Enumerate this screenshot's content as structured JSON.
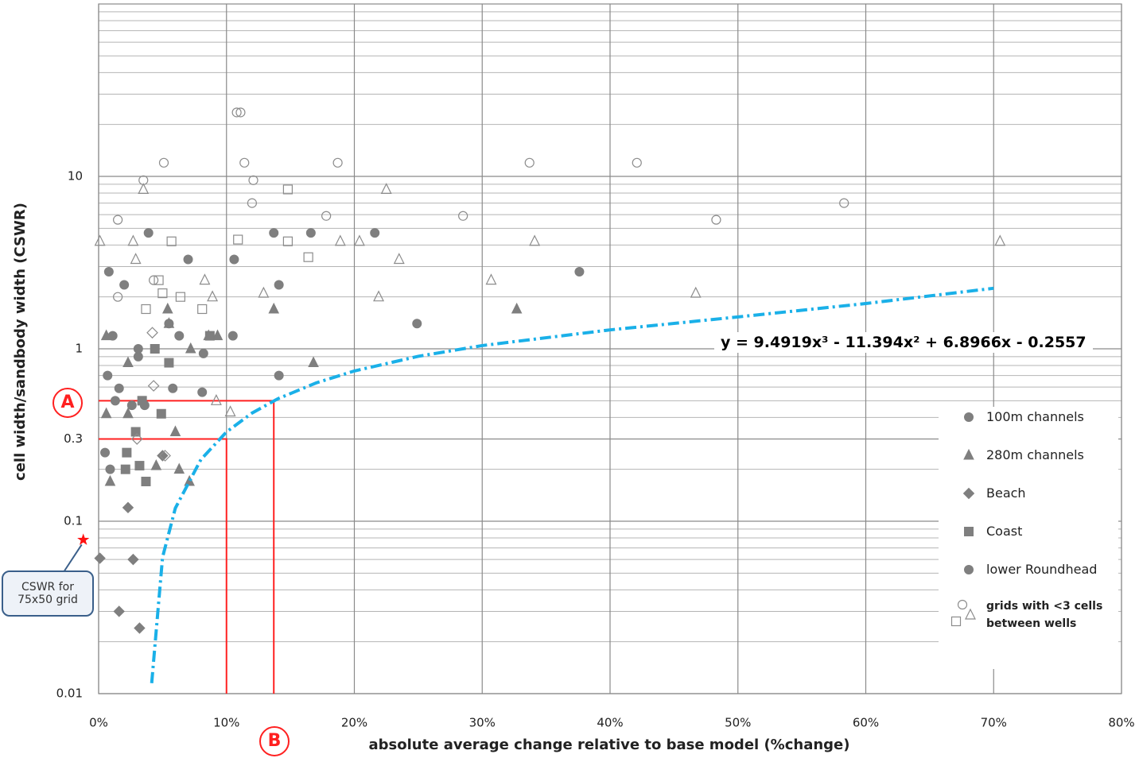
{
  "chart_data": {
    "type": "scatter",
    "x_label": "absolute average change relative to base model (%change)",
    "y_label": "cell width/sandbody width (CSWR)",
    "xlim": [
      0,
      0.8
    ],
    "xticks": [
      {
        "value": 0,
        "label": "0%"
      },
      {
        "value": 0.1,
        "label": "10%"
      },
      {
        "value": 0.2,
        "label": "20%"
      },
      {
        "value": 0.3,
        "label": "30%"
      },
      {
        "value": 0.4,
        "label": "40%"
      },
      {
        "value": 0.5,
        "label": "50%"
      },
      {
        "value": 0.6,
        "label": "60%"
      },
      {
        "value": 0.7,
        "label": "70%"
      },
      {
        "value": 0.8,
        "label": "80%"
      }
    ],
    "ylim": [
      0.01,
      100
    ],
    "log_y": true,
    "yticks": [
      0.01,
      0.1,
      0.3,
      1,
      10
    ],
    "yminor": [
      0.02,
      0.03,
      0.04,
      0.05,
      0.06,
      0.07,
      0.08,
      0.09,
      0.2,
      0.3,
      0.4,
      0.5,
      0.6,
      0.7,
      0.8,
      0.9,
      2,
      3,
      4,
      5,
      6,
      7,
      8,
      9,
      20,
      30,
      40,
      50,
      60,
      70,
      80,
      90
    ],
    "grid": true,
    "series": [
      {
        "name": "100m channels",
        "marker": "circle",
        "filled": true,
        "color": "#7f7f7f",
        "x": [
          0.039,
          0.008,
          0.02,
          0.07,
          0.055,
          0.011,
          0.031,
          0.007,
          0.016,
          0.058,
          0.026,
          0.036,
          0.081,
          0.063,
          0.105,
          0.137,
          0.166,
          0.216,
          0.141,
          0.141,
          0.249,
          0.376,
          0.005,
          0.009
        ],
        "values": [
          4.7,
          2.8,
          2.35,
          3.3,
          1.4,
          1.19,
          1.0,
          0.7,
          0.59,
          0.59,
          0.47,
          0.47,
          0.56,
          1.19,
          1.19,
          4.7,
          4.7,
          4.7,
          2.35,
          0.7,
          1.4,
          2.8,
          0.25,
          0.2
        ]
      },
      {
        "name": "280m channels",
        "marker": "triangle",
        "filled": true,
        "color": "#7f7f7f",
        "x": [
          0.054,
          0.023,
          0.072,
          0.086,
          0.093,
          0.006,
          0.023,
          0.06,
          0.009,
          0.063,
          0.071,
          0.137,
          0.168,
          0.327,
          0.045,
          0.006,
          0.055
        ],
        "values": [
          1.7,
          0.83,
          1.0,
          1.19,
          1.19,
          0.42,
          0.42,
          0.33,
          0.17,
          0.2,
          0.17,
          1.7,
          0.83,
          1.7,
          0.21,
          1.19,
          1.4
        ]
      },
      {
        "name": "Beach",
        "marker": "diamond",
        "filled": true,
        "color": "#7f7f7f",
        "x": [
          0.001,
          0.027,
          0.016,
          0.032,
          0.023,
          0.05
        ],
        "values": [
          0.061,
          0.06,
          0.03,
          0.024,
          0.12,
          0.24
        ]
      },
      {
        "name": "Coast",
        "marker": "square",
        "filled": true,
        "color": "#7f7f7f",
        "x": [
          0.044,
          0.055,
          0.049,
          0.029,
          0.032,
          0.021,
          0.037,
          0.087,
          0.034,
          0.022
        ],
        "values": [
          1.0,
          0.83,
          0.42,
          0.33,
          0.21,
          0.2,
          0.17,
          1.19,
          0.5,
          0.25
        ]
      },
      {
        "name": "lower Roundhead",
        "marker": "circle",
        "filled": true,
        "color": "#7f7f7f",
        "x": [
          0.106,
          0.082,
          0.031,
          0.013
        ],
        "values": [
          3.3,
          0.94,
          0.9,
          0.5
        ]
      },
      {
        "name": "grids with <3 cells between wells",
        "marker": "circle",
        "filled": false,
        "color": "#8c8c8c",
        "legend_markers": [
          "circle",
          "triangle",
          "square"
        ],
        "x": [
          0.108,
          0.111,
          0.051,
          0.035,
          0.015,
          0.114,
          0.121,
          0.12,
          0.187,
          0.178,
          0.285,
          0.337,
          0.421,
          0.483,
          0.583,
          0.015,
          0.043
        ],
        "values": [
          23.5,
          23.5,
          12,
          9.5,
          5.6,
          12,
          9.5,
          7,
          12,
          5.9,
          5.9,
          12,
          12,
          5.6,
          7,
          2.0,
          2.5
        ]
      },
      {
        "marker": "triangle",
        "filled": false,
        "color": "#8c8c8c",
        "x": [
          0.001,
          0.035,
          0.027,
          0.029,
          0.083,
          0.089,
          0.129,
          0.189,
          0.204,
          0.225,
          0.235,
          0.219,
          0.307,
          0.341,
          0.467,
          0.705,
          0.092,
          0.103
        ],
        "values": [
          4.2,
          8.4,
          4.2,
          3.3,
          2.5,
          2.0,
          2.1,
          4.2,
          4.2,
          8.4,
          3.3,
          2.0,
          2.5,
          4.2,
          2.1,
          4.2,
          0.5,
          0.43
        ]
      },
      {
        "marker": "square",
        "filled": false,
        "color": "#8c8c8c",
        "x": [
          0.057,
          0.047,
          0.05,
          0.064,
          0.037,
          0.081,
          0.109,
          0.148,
          0.148,
          0.164
        ],
        "values": [
          4.2,
          2.5,
          2.1,
          2.0,
          1.7,
          1.7,
          4.3,
          8.4,
          4.2,
          3.4
        ]
      },
      {
        "marker": "diamond",
        "filled": false,
        "color": "#8c8c8c",
        "x": [
          0.042,
          0.043,
          0.03,
          0.052
        ],
        "values": [
          1.24,
          0.61,
          0.3,
          0.24
        ]
      }
    ],
    "trendline": {
      "label": "y = 9.4919x³ - 11.394x² + 6.8966x - 0.2557",
      "color": "#1ab0e8",
      "x": [
        0.0415,
        0.05,
        0.06,
        0.08,
        0.1,
        0.12,
        0.14,
        0.17,
        0.2,
        0.25,
        0.3,
        0.4,
        0.5,
        0.6,
        0.7
      ],
      "values": [
        0.0115,
        0.0618,
        0.1191,
        0.228,
        0.3295,
        0.4242,
        0.5125,
        0.6338,
        0.7438,
        0.9046,
        1.0441,
        1.2874,
        1.5306,
        1.8307,
        2.2447
      ]
    },
    "guides": [
      {
        "x": 0.1,
        "y": 0.3
      },
      {
        "x": 0.137,
        "y": 0.5
      }
    ],
    "guide_color": "#ff2020",
    "reference_point": {
      "x": -0.012,
      "y": 0.078,
      "label": "CSWR for 75x50 grid",
      "color": "#ff1010"
    },
    "annotations": [
      "A",
      "B"
    ]
  }
}
